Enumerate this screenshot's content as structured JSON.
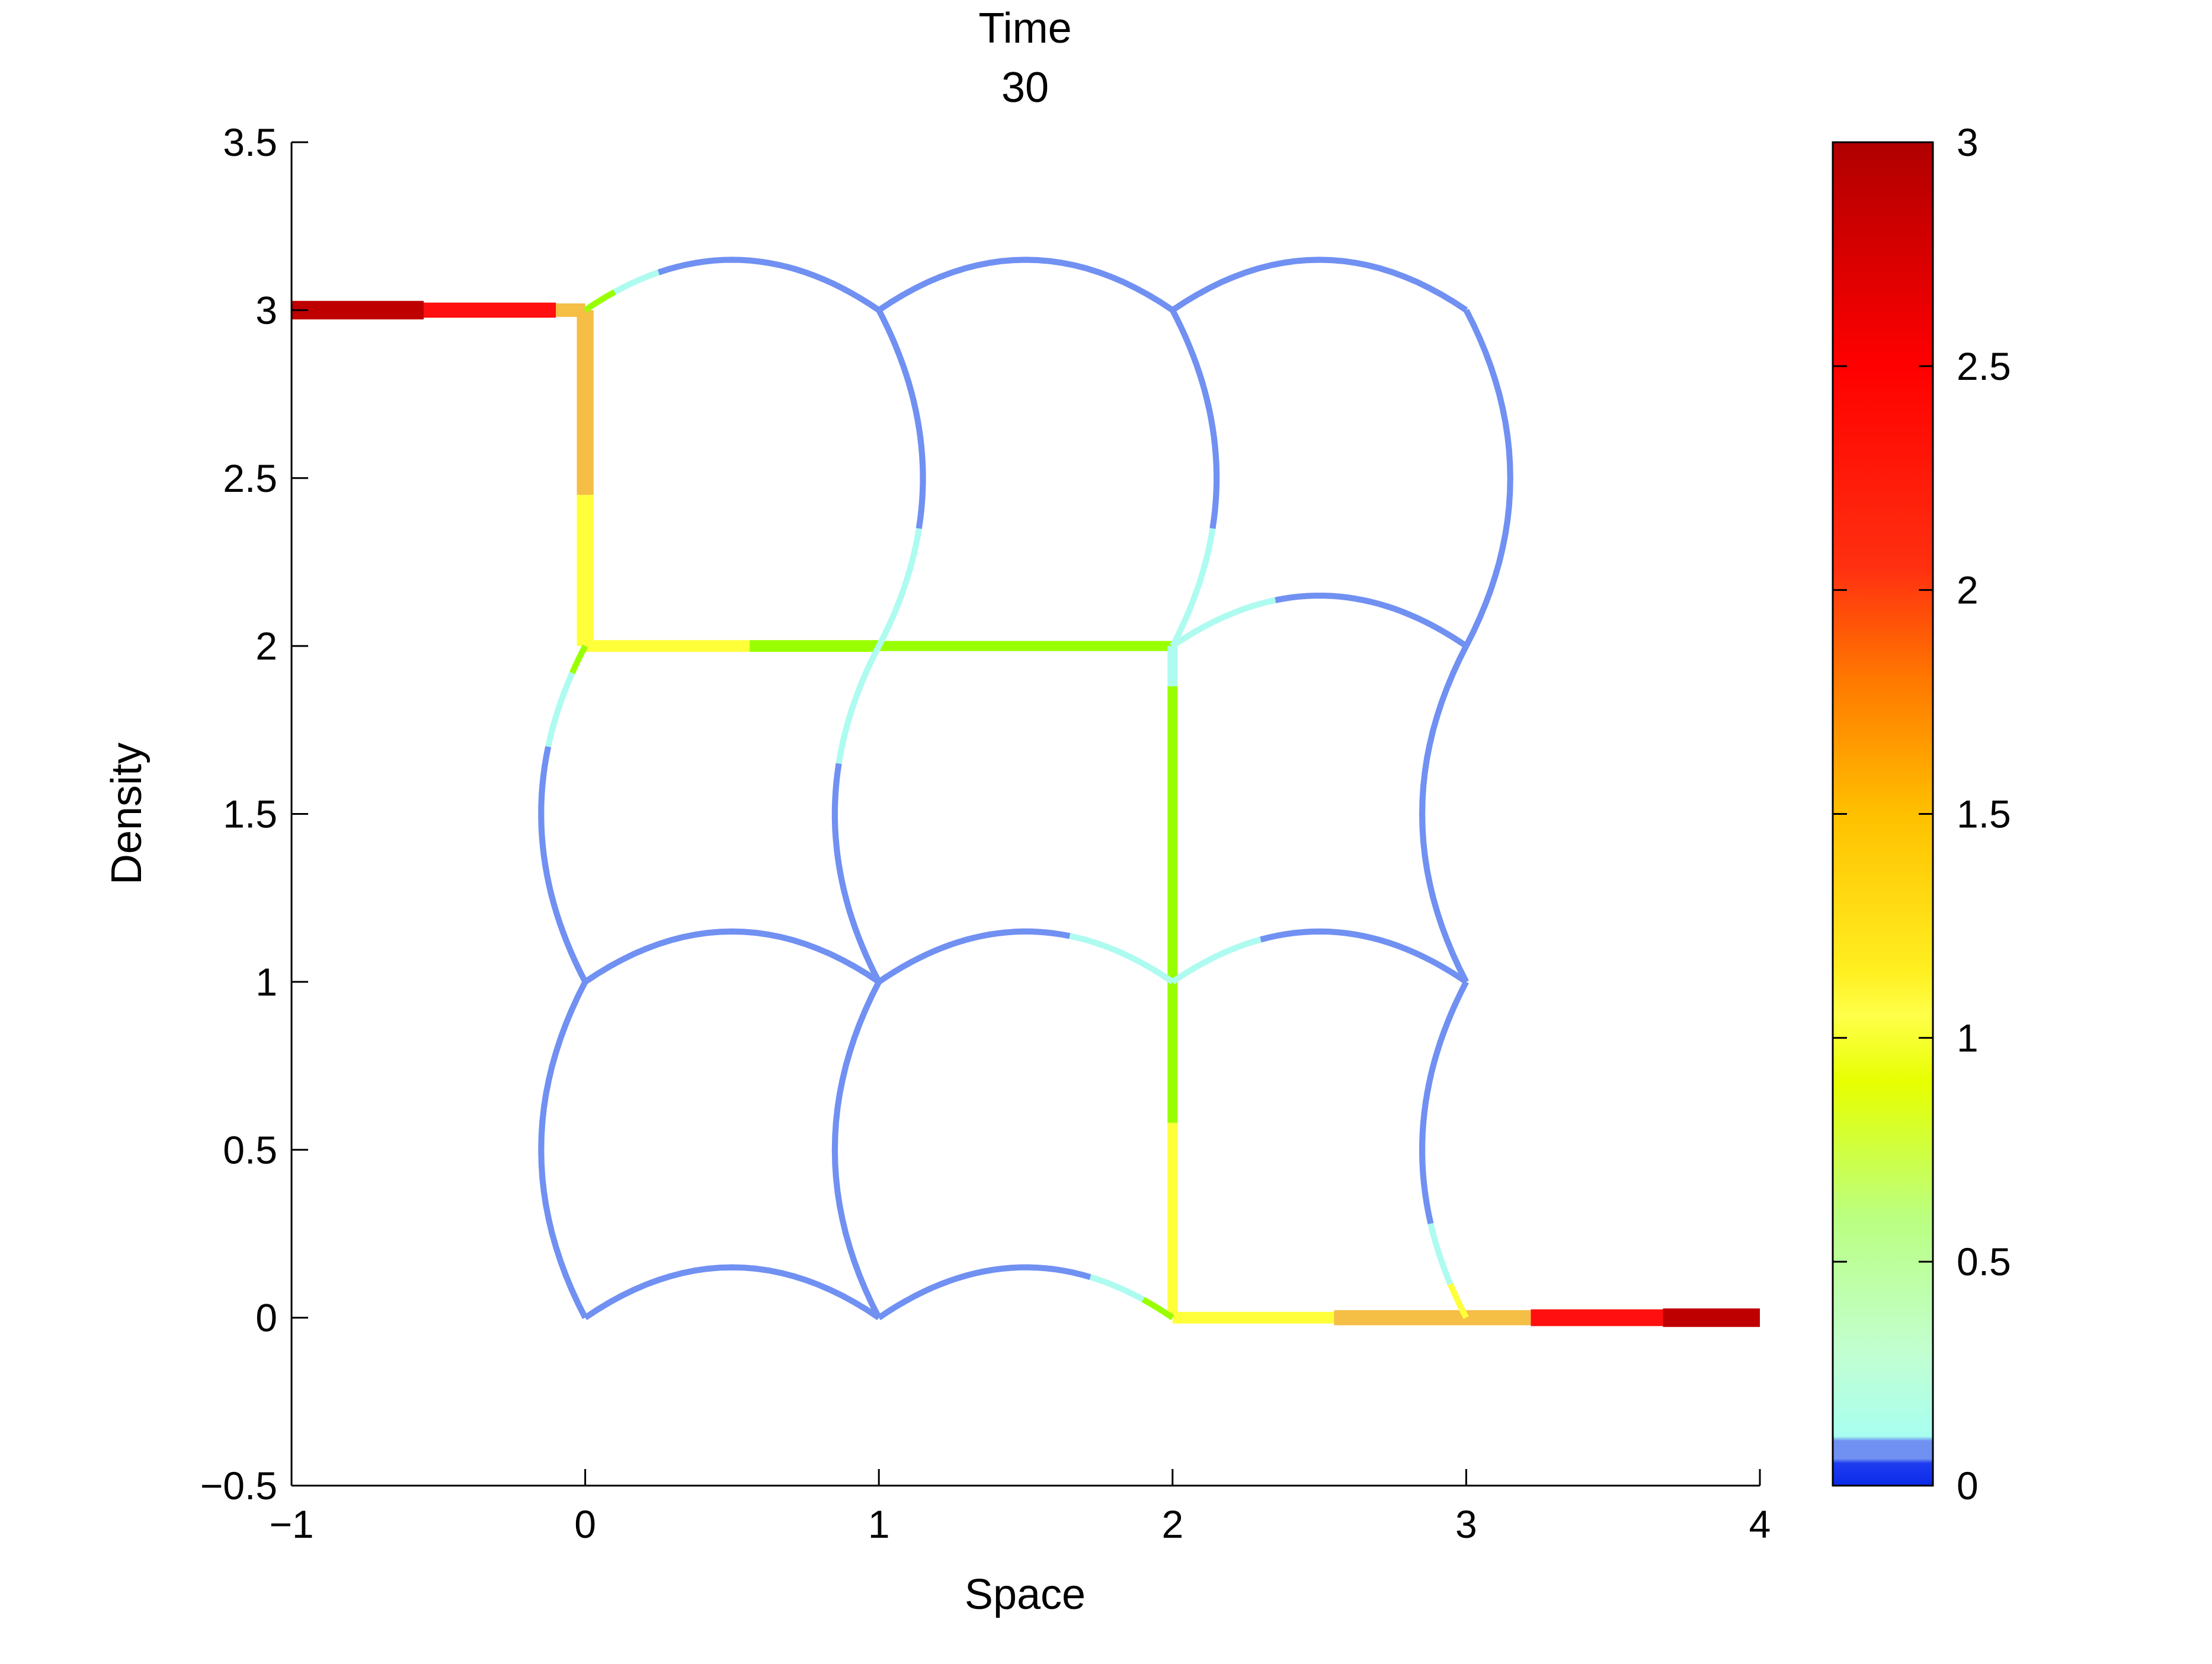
{
  "chart_data": {
    "type": "network-density-plot",
    "title": [
      "Time",
      "30"
    ],
    "xlabel": "Space",
    "ylabel": "Density",
    "xlim": [
      -1,
      4
    ],
    "ylim": [
      -0.5,
      3.5
    ],
    "xticks": [
      -1,
      0,
      1,
      2,
      3,
      4
    ],
    "xtick_labels": [
      "−1",
      "0",
      "1",
      "2",
      "3",
      "4"
    ],
    "yticks": [
      -0.5,
      0,
      0.5,
      1,
      1.5,
      2,
      2.5,
      3,
      3.5
    ],
    "ytick_labels": [
      "−0.5",
      "0",
      "0.5",
      "1",
      "1.5",
      "2",
      "2.5",
      "3",
      "3.5"
    ],
    "grid": false,
    "colorbar": {
      "range": [
        0,
        3
      ],
      "ticks": [
        0,
        0.5,
        1,
        1.5,
        2,
        2.5,
        3
      ],
      "tick_labels": [
        "0",
        "0.5",
        "1",
        "1.5",
        "2",
        "2.5",
        "3"
      ],
      "colormap": "jet-like",
      "stops": [
        {
          "v": 0.0,
          "color": "#0a2be8"
        },
        {
          "v": 0.05,
          "color": "#1f3cf0"
        },
        {
          "v": 0.06,
          "color": "#7090f2"
        },
        {
          "v": 0.1,
          "color": "#7090f2"
        },
        {
          "v": 0.11,
          "color": "#a8fff0"
        },
        {
          "v": 0.3,
          "color": "#c2ffd0"
        },
        {
          "v": 0.6,
          "color": "#baff80"
        },
        {
          "v": 0.9,
          "color": "#e6ff00"
        },
        {
          "v": 1.05,
          "color": "#ffff4a"
        },
        {
          "v": 1.15,
          "color": "#ffef20"
        },
        {
          "v": 1.5,
          "color": "#ffc000"
        },
        {
          "v": 1.8,
          "color": "#ff7800"
        },
        {
          "v": 2.05,
          "color": "#ff3010"
        },
        {
          "v": 2.5,
          "color": "#ff0000"
        },
        {
          "v": 3.0,
          "color": "#b00000"
        }
      ]
    },
    "density_colors": {
      "low": "#7090f2",
      "cyan": "#aefbf0",
      "lime": "#99ff00",
      "yellow": "#ffff3a",
      "orange": "#f5be45",
      "red": "#ff0f0f",
      "darkred": "#bf0000"
    },
    "edges": [
      {
        "from": [
          -1,
          3
        ],
        "to": [
          -0.55,
          3
        ],
        "bow": 0,
        "width": 0.055,
        "segments": [
          {
            "t0": 0,
            "t1": 1,
            "c": "darkred"
          }
        ]
      },
      {
        "from": [
          -0.55,
          3
        ],
        "to": [
          -0.1,
          3
        ],
        "bow": 0,
        "width": 0.045,
        "segments": [
          {
            "t0": 0,
            "t1": 1,
            "c": "red"
          }
        ]
      },
      {
        "from": [
          -0.1,
          3
        ],
        "to": [
          0,
          3
        ],
        "bow": 0,
        "width": 0.04,
        "segments": [
          {
            "t0": 0,
            "t1": 1,
            "c": "orange"
          }
        ]
      },
      {
        "from": [
          0,
          3
        ],
        "to": [
          0,
          2
        ],
        "bow": 0,
        "width": 0.05,
        "segments": [
          {
            "t0": 0,
            "t1": 0.55,
            "c": "orange"
          },
          {
            "t0": 0.55,
            "t1": 1,
            "c": "yellow"
          }
        ]
      },
      {
        "from": [
          0,
          2
        ],
        "to": [
          1,
          2
        ],
        "bow": 0,
        "width": 0.035,
        "segments": [
          {
            "t0": 0,
            "t1": 0.56,
            "c": "yellow"
          },
          {
            "t0": 0.56,
            "t1": 1,
            "c": "lime"
          }
        ]
      },
      {
        "from": [
          1,
          2
        ],
        "to": [
          2,
          2
        ],
        "bow": 0,
        "width": 0.03,
        "segments": [
          {
            "t0": 0,
            "t1": 1,
            "c": "lime"
          }
        ]
      },
      {
        "from": [
          2,
          2
        ],
        "to": [
          2,
          1
        ],
        "bow": 0,
        "width": 0.03,
        "segments": [
          {
            "t0": 0,
            "t1": 0.12,
            "c": "cyan"
          },
          {
            "t0": 0.12,
            "t1": 1,
            "c": "lime"
          }
        ]
      },
      {
        "from": [
          2,
          1
        ],
        "to": [
          2,
          0
        ],
        "bow": 0,
        "width": 0.03,
        "segments": [
          {
            "t0": 0,
            "t1": 0.42,
            "c": "lime"
          },
          {
            "t0": 0.42,
            "t1": 1,
            "c": "yellow"
          }
        ]
      },
      {
        "from": [
          2,
          0
        ],
        "to": [
          2.55,
          0
        ],
        "bow": 0,
        "width": 0.035,
        "segments": [
          {
            "t0": 0,
            "t1": 1,
            "c": "yellow"
          }
        ]
      },
      {
        "from": [
          2.55,
          0
        ],
        "to": [
          3.22,
          0
        ],
        "bow": 0,
        "width": 0.045,
        "segments": [
          {
            "t0": 0,
            "t1": 1,
            "c": "orange"
          }
        ]
      },
      {
        "from": [
          3.22,
          0
        ],
        "to": [
          3.67,
          0
        ],
        "bow": 0,
        "width": 0.05,
        "segments": [
          {
            "t0": 0,
            "t1": 1,
            "c": "red"
          }
        ]
      },
      {
        "from": [
          3.67,
          0
        ],
        "to": [
          4,
          0
        ],
        "bow": 0,
        "width": 0.055,
        "segments": [
          {
            "t0": 0,
            "t1": 1,
            "c": "darkred"
          }
        ]
      },
      {
        "from": [
          0,
          3
        ],
        "to": [
          1,
          3
        ],
        "bow": 0.15,
        "width": 0.018,
        "segments": [
          {
            "t0": 0,
            "t1": 0.1,
            "c": "lime"
          },
          {
            "t0": 0.1,
            "t1": 0.25,
            "c": "cyan"
          },
          {
            "t0": 0.25,
            "t1": 1,
            "c": "low"
          }
        ]
      },
      {
        "from": [
          1,
          3
        ],
        "to": [
          2,
          3
        ],
        "bow": 0.15,
        "width": 0.018,
        "segments": [
          {
            "t0": 0,
            "t1": 1,
            "c": "low"
          }
        ]
      },
      {
        "from": [
          2,
          3
        ],
        "to": [
          3,
          3
        ],
        "bow": 0.15,
        "width": 0.018,
        "segments": [
          {
            "t0": 0,
            "t1": 1,
            "c": "low"
          }
        ]
      },
      {
        "from": [
          1,
          3
        ],
        "to": [
          1,
          2
        ],
        "bow": 0.15,
        "width": 0.018,
        "segments": [
          {
            "t0": 0,
            "t1": 0.65,
            "c": "low"
          },
          {
            "t0": 0.65,
            "t1": 1,
            "c": "cyan"
          }
        ]
      },
      {
        "from": [
          2,
          3
        ],
        "to": [
          2,
          2
        ],
        "bow": 0.15,
        "width": 0.018,
        "segments": [
          {
            "t0": 0,
            "t1": 0.65,
            "c": "low"
          },
          {
            "t0": 0.65,
            "t1": 1,
            "c": "cyan"
          }
        ]
      },
      {
        "from": [
          3,
          3
        ],
        "to": [
          3,
          2
        ],
        "bow": 0.15,
        "width": 0.018,
        "segments": [
          {
            "t0": 0,
            "t1": 1,
            "c": "low"
          }
        ]
      },
      {
        "from": [
          2,
          2
        ],
        "to": [
          3,
          2
        ],
        "bow": 0.15,
        "width": 0.018,
        "segments": [
          {
            "t0": 0,
            "t1": 0.35,
            "c": "cyan"
          },
          {
            "t0": 0.35,
            "t1": 1,
            "c": "low"
          }
        ]
      },
      {
        "from": [
          0,
          2
        ],
        "to": [
          0,
          1
        ],
        "bow": -0.15,
        "width": 0.018,
        "segments": [
          {
            "t0": 0,
            "t1": 0.08,
            "c": "lime"
          },
          {
            "t0": 0.08,
            "t1": 0.3,
            "c": "cyan"
          },
          {
            "t0": 0.3,
            "t1": 1,
            "c": "low"
          }
        ]
      },
      {
        "from": [
          1,
          2
        ],
        "to": [
          1,
          1
        ],
        "bow": -0.15,
        "width": 0.018,
        "segments": [
          {
            "t0": 0,
            "t1": 0.35,
            "c": "cyan"
          },
          {
            "t0": 0.35,
            "t1": 1,
            "c": "low"
          }
        ]
      },
      {
        "from": [
          3,
          2
        ],
        "to": [
          3,
          1
        ],
        "bow": -0.15,
        "width": 0.018,
        "segments": [
          {
            "t0": 0,
            "t1": 1,
            "c": "low"
          }
        ]
      },
      {
        "from": [
          0,
          1
        ],
        "to": [
          1,
          1
        ],
        "bow": 0.15,
        "width": 0.018,
        "segments": [
          {
            "t0": 0,
            "t1": 1,
            "c": "low"
          }
        ]
      },
      {
        "from": [
          1,
          1
        ],
        "to": [
          2,
          1
        ],
        "bow": 0.15,
        "width": 0.018,
        "segments": [
          {
            "t0": 0,
            "t1": 0.65,
            "c": "low"
          },
          {
            "t0": 0.65,
            "t1": 1,
            "c": "cyan"
          }
        ]
      },
      {
        "from": [
          2,
          1
        ],
        "to": [
          3,
          1
        ],
        "bow": 0.15,
        "width": 0.018,
        "segments": [
          {
            "t0": 0,
            "t1": 0.3,
            "c": "cyan"
          },
          {
            "t0": 0.3,
            "t1": 1,
            "c": "low"
          }
        ]
      },
      {
        "from": [
          0,
          1
        ],
        "to": [
          0,
          0
        ],
        "bow": -0.15,
        "width": 0.018,
        "segments": [
          {
            "t0": 0,
            "t1": 1,
            "c": "low"
          }
        ]
      },
      {
        "from": [
          1,
          1
        ],
        "to": [
          1,
          0
        ],
        "bow": -0.15,
        "width": 0.018,
        "segments": [
          {
            "t0": 0,
            "t1": 1,
            "c": "low"
          }
        ]
      },
      {
        "from": [
          3,
          1
        ],
        "to": [
          3,
          0
        ],
        "bow": -0.15,
        "width": 0.018,
        "segments": [
          {
            "t0": 0,
            "t1": 0.72,
            "c": "low"
          },
          {
            "t0": 0.72,
            "t1": 0.9,
            "c": "cyan"
          },
          {
            "t0": 0.9,
            "t1": 1,
            "c": "yellow"
          }
        ]
      },
      {
        "from": [
          0,
          0
        ],
        "to": [
          1,
          0
        ],
        "bow": 0.15,
        "width": 0.018,
        "segments": [
          {
            "t0": 0,
            "t1": 1,
            "c": "low"
          }
        ]
      },
      {
        "from": [
          1,
          0
        ],
        "to": [
          2,
          0
        ],
        "bow": 0.15,
        "width": 0.018,
        "segments": [
          {
            "t0": 0,
            "t1": 0.72,
            "c": "low"
          },
          {
            "t0": 0.72,
            "t1": 0.9,
            "c": "cyan"
          },
          {
            "t0": 0.9,
            "t1": 1,
            "c": "lime"
          }
        ]
      }
    ]
  }
}
